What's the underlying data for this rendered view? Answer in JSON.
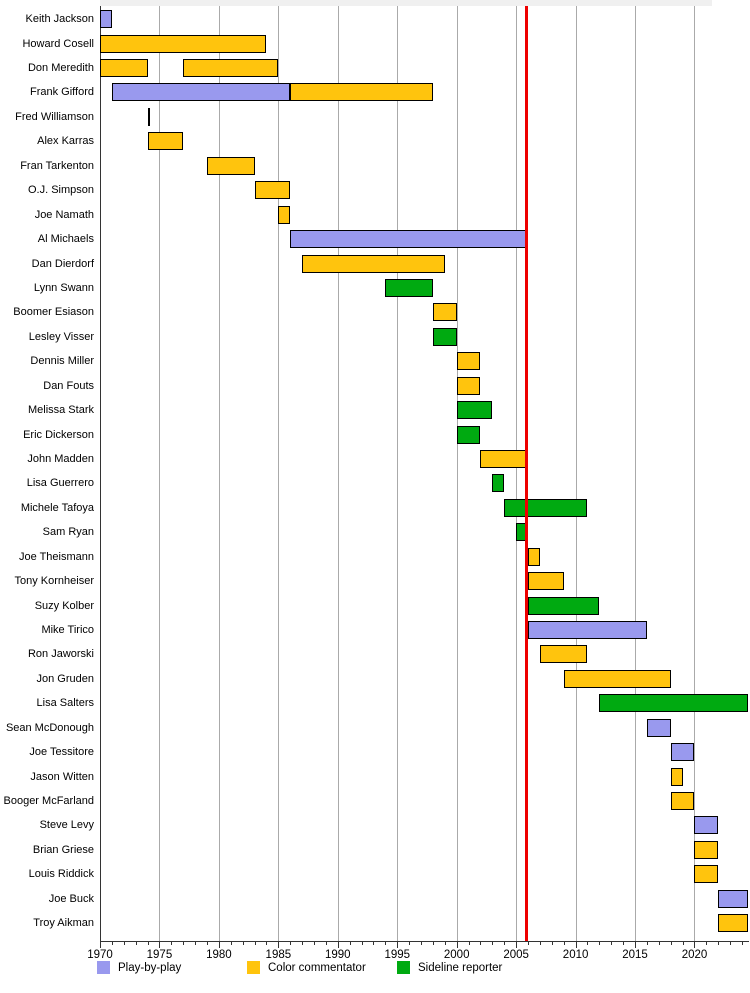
{
  "chart_data": {
    "type": "gantt",
    "x_axis": {
      "min": 1970,
      "max": 2024.5,
      "tick_labels": [
        "1970",
        "1975",
        "1980",
        "1985",
        "1990",
        "1995",
        "2000",
        "2005",
        "2010",
        "2015",
        "2020"
      ],
      "major_tick_interval": 5,
      "minor_tick_interval": 1,
      "grid": "vertical-gray"
    },
    "divider_line": {
      "year": 2006,
      "color": "#ee0000"
    },
    "role_colors": {
      "play-by-play": "#9999ee",
      "color-commentator": "#ffc40d",
      "sideline-reporter": "#00aa11"
    },
    "legend": [
      {
        "role": "play-by-play",
        "label": "Play-by-play",
        "color": "#9999ee"
      },
      {
        "role": "color-commentator",
        "label": "Color commentator",
        "color": "#ffc40d"
      },
      {
        "role": "sideline-reporter",
        "label": "Sideline reporter",
        "color": "#00aa11"
      }
    ],
    "people": [
      {
        "name": "Keith Jackson",
        "bars": [
          {
            "role": "play-by-play",
            "start": 1970,
            "end": 1971
          }
        ]
      },
      {
        "name": "Howard Cosell",
        "bars": [
          {
            "role": "color-commentator",
            "start": 1970,
            "end": 1984
          }
        ]
      },
      {
        "name": "Don Meredith",
        "bars": [
          {
            "role": "color-commentator",
            "start": 1970,
            "end": 1974
          },
          {
            "role": "color-commentator",
            "start": 1977,
            "end": 1985
          }
        ]
      },
      {
        "name": "Frank Gifford",
        "bars": [
          {
            "role": "play-by-play",
            "start": 1971,
            "end": 1986
          },
          {
            "role": "color-commentator",
            "start": 1986,
            "end": 1998
          }
        ]
      },
      {
        "name": "Fred Williamson",
        "bars": [
          {
            "role": "color-commentator",
            "start": 1974,
            "end": 1974.2
          }
        ]
      },
      {
        "name": "Alex Karras",
        "bars": [
          {
            "role": "color-commentator",
            "start": 1974,
            "end": 1977
          }
        ]
      },
      {
        "name": "Fran Tarkenton",
        "bars": [
          {
            "role": "color-commentator",
            "start": 1979,
            "end": 1983
          }
        ]
      },
      {
        "name": "O.J. Simpson",
        "bars": [
          {
            "role": "color-commentator",
            "start": 1983,
            "end": 1986
          }
        ]
      },
      {
        "name": "Joe Namath",
        "bars": [
          {
            "role": "color-commentator",
            "start": 1985,
            "end": 1986
          }
        ]
      },
      {
        "name": "Al Michaels",
        "bars": [
          {
            "role": "play-by-play",
            "start": 1986,
            "end": 2006
          }
        ]
      },
      {
        "name": "Dan Dierdorf",
        "bars": [
          {
            "role": "color-commentator",
            "start": 1987,
            "end": 1999
          }
        ]
      },
      {
        "name": "Lynn Swann",
        "bars": [
          {
            "role": "sideline-reporter",
            "start": 1994,
            "end": 1998
          }
        ]
      },
      {
        "name": "Boomer Esiason",
        "bars": [
          {
            "role": "color-commentator",
            "start": 1998,
            "end": 2000
          }
        ]
      },
      {
        "name": "Lesley Visser",
        "bars": [
          {
            "role": "sideline-reporter",
            "start": 1998,
            "end": 2000
          }
        ]
      },
      {
        "name": "Dennis Miller",
        "bars": [
          {
            "role": "color-commentator",
            "start": 2000,
            "end": 2002
          }
        ]
      },
      {
        "name": "Dan Fouts",
        "bars": [
          {
            "role": "color-commentator",
            "start": 2000,
            "end": 2002
          }
        ]
      },
      {
        "name": "Melissa Stark",
        "bars": [
          {
            "role": "sideline-reporter",
            "start": 2000,
            "end": 2003
          }
        ]
      },
      {
        "name": "Eric Dickerson",
        "bars": [
          {
            "role": "sideline-reporter",
            "start": 2000,
            "end": 2002
          }
        ]
      },
      {
        "name": "John Madden",
        "bars": [
          {
            "role": "color-commentator",
            "start": 2002,
            "end": 2006
          }
        ]
      },
      {
        "name": "Lisa Guerrero",
        "bars": [
          {
            "role": "sideline-reporter",
            "start": 2003,
            "end": 2004
          }
        ]
      },
      {
        "name": "Michele Tafoya",
        "bars": [
          {
            "role": "sideline-reporter",
            "start": 2004,
            "end": 2011
          }
        ]
      },
      {
        "name": "Sam Ryan",
        "bars": [
          {
            "role": "sideline-reporter",
            "start": 2005,
            "end": 2006
          }
        ]
      },
      {
        "name": "Joe Theismann",
        "bars": [
          {
            "role": "color-commentator",
            "start": 2006,
            "end": 2007
          }
        ]
      },
      {
        "name": "Tony Kornheiser",
        "bars": [
          {
            "role": "color-commentator",
            "start": 2006,
            "end": 2009
          }
        ]
      },
      {
        "name": "Suzy Kolber",
        "bars": [
          {
            "role": "sideline-reporter",
            "start": 2006,
            "end": 2012
          }
        ]
      },
      {
        "name": "Mike Tirico",
        "bars": [
          {
            "role": "play-by-play",
            "start": 2006,
            "end": 2016
          }
        ]
      },
      {
        "name": "Ron Jaworski",
        "bars": [
          {
            "role": "color-commentator",
            "start": 2007,
            "end": 2011
          }
        ]
      },
      {
        "name": "Jon Gruden",
        "bars": [
          {
            "role": "color-commentator",
            "start": 2009,
            "end": 2018
          }
        ]
      },
      {
        "name": "Lisa Salters",
        "bars": [
          {
            "role": "sideline-reporter",
            "start": 2012,
            "end": 2024.5
          }
        ]
      },
      {
        "name": "Sean McDonough",
        "bars": [
          {
            "role": "play-by-play",
            "start": 2016,
            "end": 2018
          }
        ]
      },
      {
        "name": "Joe Tessitore",
        "bars": [
          {
            "role": "play-by-play",
            "start": 2018,
            "end": 2020
          }
        ]
      },
      {
        "name": "Jason Witten",
        "bars": [
          {
            "role": "color-commentator",
            "start": 2018,
            "end": 2019
          }
        ]
      },
      {
        "name": "Booger McFarland",
        "bars": [
          {
            "role": "color-commentator",
            "start": 2018,
            "end": 2020
          }
        ]
      },
      {
        "name": "Steve Levy",
        "bars": [
          {
            "role": "play-by-play",
            "start": 2020,
            "end": 2022
          }
        ]
      },
      {
        "name": "Brian Griese",
        "bars": [
          {
            "role": "color-commentator",
            "start": 2020,
            "end": 2022
          }
        ]
      },
      {
        "name": "Louis Riddick",
        "bars": [
          {
            "role": "color-commentator",
            "start": 2020,
            "end": 2022
          }
        ]
      },
      {
        "name": "Joe Buck",
        "bars": [
          {
            "role": "play-by-play",
            "start": 2022,
            "end": 2024.5
          }
        ]
      },
      {
        "name": "Troy Aikman",
        "bars": [
          {
            "role": "color-commentator",
            "start": 2022,
            "end": 2024.5
          }
        ]
      }
    ]
  }
}
